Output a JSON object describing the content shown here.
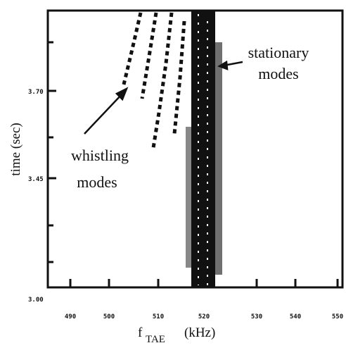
{
  "figure": {
    "y_label": "time (sec)",
    "x_label": {
      "main": "f",
      "sub": "TAE",
      "unit": "(kHz)"
    },
    "y_tick_labels": [
      "3.00",
      "3.45",
      "3.70"
    ],
    "x_tick_labels": [
      "490",
      "500",
      "510",
      "520",
      "530",
      "540",
      "550"
    ],
    "annotations": {
      "stationary": [
        "stationary",
        "modes"
      ],
      "whistling": [
        "whistling",
        "modes"
      ]
    }
  }
}
